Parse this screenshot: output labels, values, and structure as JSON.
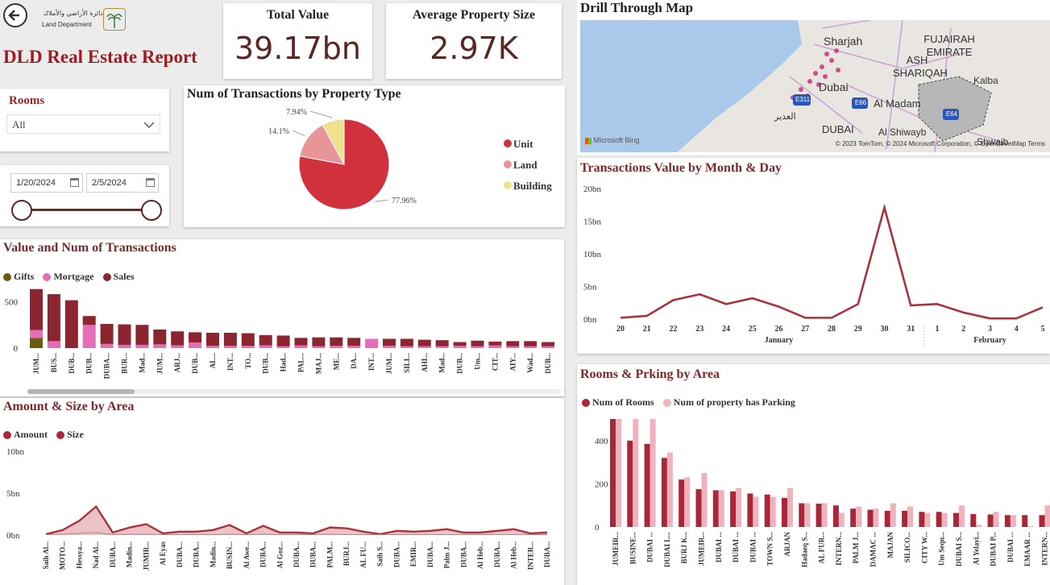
{
  "header": {
    "back_icon": "back-arrow-icon",
    "logo_text_ar": "دائرة الأراضي والأملاك",
    "logo_text_en": "Land Department",
    "report_title": "DLD Real Estate Report"
  },
  "kpis": {
    "total_value_label": "Total Value",
    "total_value": "39.17bn",
    "avg_size_label": "Average Property Size",
    "avg_size": "2.97K"
  },
  "filters": {
    "rooms_label": "Rooms",
    "rooms_value": "All",
    "date_start": "1/20/2024",
    "date_end": "2/5/2024"
  },
  "colors": {
    "unit": "#d1313d",
    "land": "#e8959a",
    "building": "#f0e18f",
    "gifts": "#6b5a10",
    "mortgage": "#e46cb8",
    "sales": "#8b2630",
    "line": "#a7343e",
    "rooms": "#a8283a",
    "parking": "#f0b3bd"
  },
  "map": {
    "title": "Drill Through Map",
    "labels": [
      "Sharjah",
      "FUJAIRAH EMIRATE",
      "ASH SHARIQAH",
      "Kalba",
      "Dubai",
      "Al Madam",
      "DUBAI",
      "Al Shiwayb",
      "Shwaib",
      "العذير"
    ],
    "road_labels": [
      "E311",
      "E66",
      "E64"
    ],
    "bing": "Microsoft Bing",
    "attribution": "© 2023 TomTom, © 2024 Microsoft Corporation, © OpenStreetMap Terms"
  },
  "chart_data": [
    {
      "id": "pie",
      "type": "pie",
      "title": "Num of Transactions by Property Type",
      "categories": [
        "Unit",
        "Land",
        "Building"
      ],
      "values": [
        77.96,
        14.1,
        7.94
      ],
      "labels": [
        "77.96%",
        "14.1%",
        "7.94%"
      ],
      "legend": "right"
    },
    {
      "id": "bars",
      "type": "bar",
      "title": "Value and Num of Transactions",
      "yticks": [
        "0",
        "500"
      ],
      "ylim": [
        0,
        650
      ],
      "categories": [
        "JUM...",
        "BUS...",
        "DUB...",
        "DUB...",
        "DUBA...",
        "BUR...",
        "Mad...",
        "JUM...",
        "ARJ...",
        "DUB...",
        "AL...",
        "INT...",
        "TO...",
        "DUB...",
        "Had...",
        "PAL...",
        "MAJ...",
        "ME...",
        "DA...",
        "INT...",
        "JUM...",
        "SILI...",
        "AHI...",
        "Mad...",
        "DUB...",
        "Um...",
        "CIT...",
        "AIY...",
        "Wad...",
        "DUB..."
      ],
      "series": [
        {
          "name": "Gifts",
          "values": [
            110,
            0,
            0,
            0,
            0,
            0,
            0,
            0,
            0,
            0,
            0,
            0,
            0,
            0,
            0,
            0,
            0,
            0,
            0,
            0,
            0,
            0,
            0,
            0,
            0,
            0,
            0,
            0,
            0,
            0
          ]
        },
        {
          "name": "Mortgage",
          "values": [
            85,
            75,
            0,
            250,
            45,
            35,
            35,
            40,
            30,
            60,
            25,
            25,
            25,
            30,
            20,
            30,
            20,
            25,
            25,
            100,
            25,
            20,
            20,
            20,
            25,
            20,
            30,
            20,
            20,
            20
          ]
        },
        {
          "name": "Sales",
          "values": [
            440,
            505,
            515,
            95,
            215,
            220,
            215,
            160,
            150,
            110,
            140,
            140,
            135,
            110,
            115,
            80,
            95,
            90,
            85,
            0,
            75,
            80,
            70,
            65,
            40,
            60,
            40,
            55,
            55,
            45
          ]
        }
      ]
    },
    {
      "id": "area",
      "type": "area",
      "title": "Amount & Size by Area",
      "yticks": [
        "0bn",
        "5bn",
        "10bn"
      ],
      "ylim": [
        0,
        10
      ],
      "categories": [
        "Saih Al...",
        "MOTO...",
        "Hessya...",
        "Nad Al...",
        "DUBA...",
        "Madin...",
        "JUMIR...",
        "Al Eyas",
        "DUBA...",
        "DUBA...",
        "Madin...",
        "BUSIN...",
        "Al Awe...",
        "DUBA...",
        "Al Goz...",
        "DUBA...",
        "DUBA...",
        "PALM...",
        "BURJ...",
        "AL FU...",
        "Saih S...",
        "DUBA...",
        "EMIR...",
        "DUBA...",
        "Palm J...",
        "DUBA...",
        "Al Heb...",
        "DUBA...",
        "Al Heb...",
        "INTER...",
        "DUBA..."
      ],
      "series": [
        {
          "name": "Amount",
          "values": [
            0.1,
            0.6,
            1.7,
            3.4,
            0.3,
            0.9,
            1.3,
            0.2,
            0.4,
            0.4,
            0.6,
            1.2,
            0.2,
            1.1,
            0.3,
            0.3,
            0.2,
            0.9,
            0.8,
            0.4,
            0.1,
            0.5,
            0.4,
            0.5,
            0.7,
            0.3,
            0.3,
            0.5,
            0.7,
            0.2,
            0.3
          ]
        },
        {
          "name": "Size",
          "values": [
            0.05,
            0.1,
            0.2,
            0.3,
            0.05,
            0.1,
            0.1,
            0.05,
            0.05,
            0.05,
            0.05,
            0.1,
            0.05,
            0.1,
            0.05,
            0.05,
            0.05,
            0.1,
            0.05,
            0.05,
            0.05,
            0.05,
            0.05,
            0.05,
            0.05,
            0.05,
            0.05,
            0.05,
            0.05,
            0.05,
            0.05
          ]
        }
      ]
    },
    {
      "id": "line",
      "type": "line",
      "title": "Transactions Value by Month & Day",
      "yticks": [
        "0bn",
        "5bn",
        "10bn",
        "15bn",
        "20bn"
      ],
      "ylim": [
        0,
        20
      ],
      "categories": [
        "20",
        "21",
        "22",
        "23",
        "24",
        "25",
        "26",
        "27",
        "28",
        "29",
        "30",
        "31",
        "1",
        "2",
        "3",
        "4",
        "5"
      ],
      "months": [
        "January",
        "February"
      ],
      "values": [
        0.2,
        0.5,
        2.9,
        3.8,
        2.3,
        3.2,
        1.9,
        0.2,
        0.2,
        2.3,
        17.1,
        2.1,
        2.3,
        1.0,
        0.1,
        0.1,
        1.8
      ]
    },
    {
      "id": "rooms",
      "type": "bar",
      "title": "Rooms & Prking by Area",
      "yticks": [
        "0",
        "200",
        "400"
      ],
      "ylim": [
        0,
        500
      ],
      "categories": [
        "JUMEIR...",
        "BUSINE...",
        "DUBAI ...",
        "DUBAI L...",
        "BURJ K...",
        "JUMEIR...",
        "DUBAI ...",
        "DUBAI ...",
        "DUBAI ...",
        "TOWN S...",
        "ARJAN",
        "Hadaeq S...",
        "AL FUR...",
        "INTERN...",
        "PALM J...",
        "DAMAC ...",
        "MAJAN",
        "SILICO...",
        "CITY W...",
        "Um Sequ...",
        "DUBAI S...",
        "Al Yelayi...",
        "DUBAI P...",
        "DUBAI ...",
        "EMAAR ...",
        "INTERN..."
      ],
      "series": [
        {
          "name": "Num of Rooms",
          "values": [
            500,
            400,
            385,
            320,
            220,
            175,
            170,
            165,
            155,
            150,
            135,
            110,
            108,
            100,
            85,
            80,
            75,
            75,
            70,
            70,
            65,
            60,
            58,
            55,
            55,
            55
          ]
        },
        {
          "name": "Num of property has Parking",
          "values": [
            500,
            500,
            500,
            345,
            230,
            250,
            170,
            180,
            140,
            140,
            180,
            110,
            110,
            65,
            95,
            85,
            110,
            95,
            65,
            65,
            100,
            10,
            70,
            55,
            5,
            100
          ]
        }
      ]
    }
  ]
}
